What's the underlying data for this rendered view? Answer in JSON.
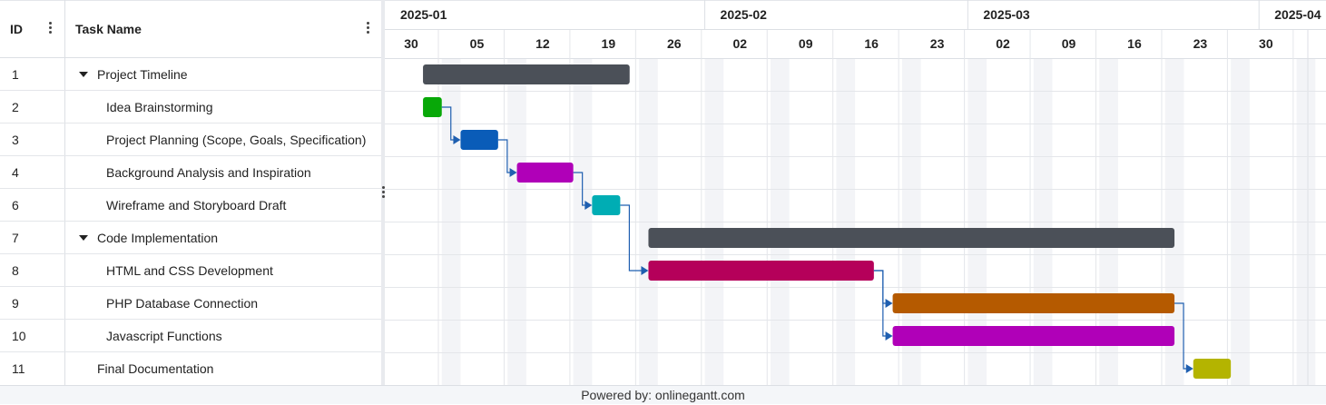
{
  "grid": {
    "headers": {
      "id": "ID",
      "name": "Task Name"
    },
    "rows": [
      {
        "id": "1",
        "name": "Project Timeline",
        "group": true
      },
      {
        "id": "2",
        "name": "Idea Brainstorming",
        "group": false
      },
      {
        "id": "3",
        "name": "Project Planning (Scope, Goals, Specification)",
        "group": false
      },
      {
        "id": "4",
        "name": "Background Analysis and Inspiration",
        "group": false
      },
      {
        "id": "6",
        "name": "Wireframe and Storyboard Draft",
        "group": false
      },
      {
        "id": "7",
        "name": "Code Implementation",
        "group": true
      },
      {
        "id": "8",
        "name": "HTML and CSS Development",
        "group": false
      },
      {
        "id": "9",
        "name": "PHP Database Connection",
        "group": false
      },
      {
        "id": "10",
        "name": "Javascript Functions",
        "group": false
      },
      {
        "id": "11",
        "name": "Final Documentation",
        "group": false,
        "top_level": true
      }
    ]
  },
  "timeline": {
    "months": [
      "2025-01",
      "2025-02",
      "2025-03",
      "2025-04"
    ],
    "weeks": [
      "30",
      "05",
      "12",
      "19",
      "26",
      "02",
      "09",
      "16",
      "23",
      "02",
      "09",
      "16",
      "23",
      "30"
    ]
  },
  "chart_data": {
    "type": "gantt",
    "start": "2024-12-30",
    "tasks": [
      {
        "id": "1",
        "name": "Project Timeline",
        "start": "2025-01-02",
        "end": "2025-01-24",
        "color": "#4b5058"
      },
      {
        "id": "2",
        "name": "Idea Brainstorming",
        "start": "2025-01-02",
        "end": "2025-01-04",
        "color": "#08a808"
      },
      {
        "id": "3",
        "name": "Project Planning (Scope, Goals, Specification)",
        "start": "2025-01-06",
        "end": "2025-01-10",
        "color": "#0a5cb8"
      },
      {
        "id": "4",
        "name": "Background Analysis and Inspiration",
        "start": "2025-01-12",
        "end": "2025-01-18",
        "color": "#b000b8"
      },
      {
        "id": "6",
        "name": "Wireframe and Storyboard Draft",
        "start": "2025-01-20",
        "end": "2025-01-23",
        "color": "#00adb4"
      },
      {
        "id": "7",
        "name": "Code Implementation",
        "start": "2025-01-26",
        "end": "2025-03-23",
        "color": "#4b5058"
      },
      {
        "id": "8",
        "name": "HTML and CSS Development",
        "start": "2025-01-26",
        "end": "2025-02-19",
        "color": "#b5005a"
      },
      {
        "id": "9",
        "name": "PHP Database Connection",
        "start": "2025-02-21",
        "end": "2025-03-23",
        "color": "#b55a00"
      },
      {
        "id": "10",
        "name": "Javascript Functions",
        "start": "2025-02-21",
        "end": "2025-03-23",
        "color": "#b000b8"
      },
      {
        "id": "11",
        "name": "Final Documentation",
        "start": "2025-03-25",
        "end": "2025-03-29",
        "color": "#b4b400"
      }
    ],
    "dependencies": [
      [
        "2",
        "3"
      ],
      [
        "3",
        "4"
      ],
      [
        "4",
        "6"
      ],
      [
        "6",
        "8"
      ],
      [
        "8",
        "9"
      ],
      [
        "8",
        "10"
      ],
      [
        "9",
        "11"
      ]
    ]
  },
  "footer": {
    "text": "Powered by: onlinegantt.com"
  }
}
